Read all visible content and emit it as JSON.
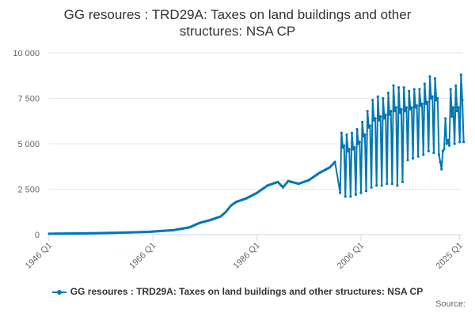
{
  "chart_data": {
    "type": "line",
    "title_lines": [
      "GG resoures : TRD29A: Taxes on land buildings and other",
      "structures: NSA CP"
    ],
    "xlabel": "",
    "ylabel": "",
    "x_tick_labels": [
      "1946 Q1",
      "1966 Q1",
      "1986 Q1",
      "2006 Q1",
      "2025 Q1"
    ],
    "x_tick_years": [
      1946,
      1966,
      1986,
      2006,
      2025
    ],
    "x_range": [
      1946,
      2025.5
    ],
    "ylim": [
      0,
      10000
    ],
    "y_ticks": [
      0,
      2500,
      5000,
      7500,
      10000
    ],
    "y_tick_labels": [
      "0",
      "2 500",
      "5 000",
      "7 500",
      "10 000"
    ],
    "grid": true,
    "legend_position": "bottom",
    "series": [
      {
        "name": "GG resoures : TRD29A: Taxes on land buildings and other structures: NSA CP",
        "color": "#0077b4",
        "anchors": [
          [
            1946,
            50
          ],
          [
            1950,
            60
          ],
          [
            1955,
            80
          ],
          [
            1960,
            110
          ],
          [
            1965,
            150
          ],
          [
            1970,
            250
          ],
          [
            1973,
            400
          ],
          [
            1975,
            650
          ],
          [
            1977,
            800
          ],
          [
            1979,
            1000
          ],
          [
            1980,
            1250
          ],
          [
            1981,
            1600
          ],
          [
            1982,
            1800
          ],
          [
            1984,
            2000
          ],
          [
            1986,
            2300
          ],
          [
            1988,
            2700
          ],
          [
            1990,
            2900
          ],
          [
            1991,
            2600
          ],
          [
            1992,
            2950
          ],
          [
            1994,
            2800
          ],
          [
            1996,
            3000
          ],
          [
            1998,
            3400
          ],
          [
            2000,
            3700
          ],
          [
            2001,
            4000
          ]
        ],
        "quarterly_from": 2002,
        "quarterly_patterns": [
          [
            2002,
            2300,
            5600,
            4800,
            4900
          ],
          [
            2003,
            2100,
            5500,
            4600,
            4700
          ],
          [
            2004,
            2100,
            5600,
            4700,
            4800
          ],
          [
            2005,
            2200,
            5800,
            5000,
            5100
          ],
          [
            2006,
            2300,
            6200,
            5400,
            5500
          ],
          [
            2007,
            2400,
            6800,
            5900,
            6000
          ],
          [
            2008,
            2600,
            7400,
            6300,
            6400
          ],
          [
            2009,
            2700,
            7600,
            6300,
            6500
          ],
          [
            2010,
            2700,
            7500,
            6400,
            6600
          ],
          [
            2011,
            2800,
            7800,
            6600,
            6800
          ],
          [
            2012,
            2800,
            8200,
            6800,
            7000
          ],
          [
            2013,
            2700,
            8100,
            6700,
            6900
          ],
          [
            2014,
            2900,
            8100,
            6800,
            7000
          ],
          [
            2015,
            4100,
            7900,
            6900,
            7000
          ],
          [
            2016,
            4200,
            8000,
            7000,
            7100
          ],
          [
            2017,
            4300,
            8000,
            7100,
            7200
          ],
          [
            2018,
            4400,
            8300,
            7200,
            7300
          ],
          [
            2019,
            4600,
            8700,
            7500,
            7600
          ],
          [
            2020,
            4500,
            8600,
            7400,
            7500
          ],
          [
            2021,
            4400,
            4000,
            3600,
            4600
          ],
          [
            2022,
            4700,
            6400,
            5000,
            5200
          ],
          [
            2023,
            4900,
            8000,
            6500,
            7000
          ],
          [
            2024,
            5000,
            8200,
            6800,
            7000
          ],
          [
            2025,
            5100,
            8800,
            7400,
            5100
          ]
        ]
      }
    ]
  },
  "source_label": "Source:"
}
